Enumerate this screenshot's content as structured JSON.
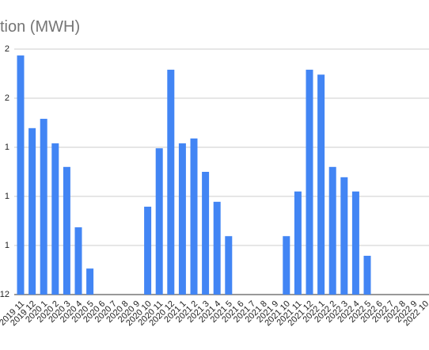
{
  "chart_data": {
    "type": "bar",
    "title": "tion (MWH)",
    "categories": [
      "2019 11",
      "2019 12",
      "2020 1",
      "2020 2",
      "2020 3",
      "2020 4",
      "2020 5",
      "2020 6",
      "2020 7",
      "2020 8",
      "2020 9",
      "2020 10",
      "2020 11",
      "2020 12",
      "2021 1",
      "2021 2",
      "2021 3",
      "2021 4",
      "2021 5",
      "2021 6",
      "2021 7",
      "2021 8",
      "2021 9",
      "2021 10",
      "2021 11",
      "2021 12",
      "2022 1",
      "2022 2",
      "2022 3",
      "2022 4",
      "2022 5",
      "2022 6",
      "2022 7",
      "2022 8",
      "2022 9",
      "2022 10"
    ],
    "values": [
      4.87,
      3.39,
      3.58,
      3.08,
      2.6,
      1.37,
      0.53,
      null,
      null,
      null,
      null,
      1.79,
      2.98,
      4.58,
      3.08,
      3.18,
      2.5,
      1.89,
      1.19,
      null,
      null,
      null,
      null,
      1.19,
      2.1,
      4.58,
      4.48,
      2.6,
      2.39,
      2.1,
      0.79,
      null,
      null,
      null,
      null,
      null
    ],
    "color": "#4285f4",
    "ylim": [
      0,
      5
    ],
    "yticks": [
      {
        "value": 0,
        "label": "12"
      },
      {
        "value": 1,
        "label": "1"
      },
      {
        "value": 2,
        "label": "1"
      },
      {
        "value": 3,
        "label": "1"
      },
      {
        "value": 4,
        "label": "2"
      },
      {
        "value": 5,
        "label": "2"
      }
    ],
    "grid": true
  }
}
